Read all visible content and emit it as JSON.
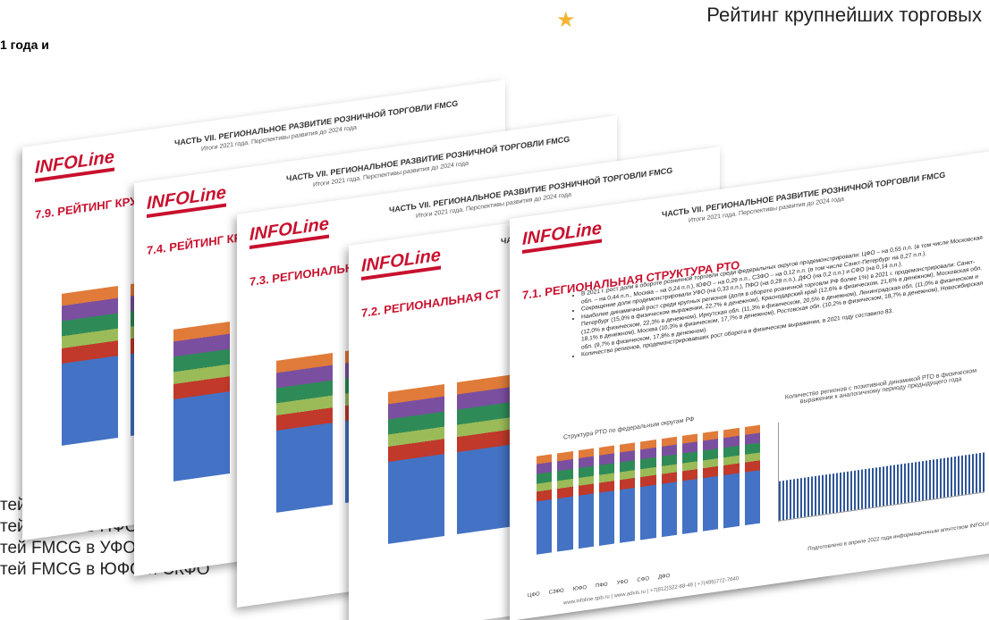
{
  "top_fragment": "1 года и",
  "banner": "Рейтинг крупнейших торговых",
  "side_list": [
    "тей FMCG в СЗФО",
    "тей FMCG в ПФО",
    "тей FMCG в УФО",
    "тей FMCG в ЮФО и СКФО"
  ],
  "slide_header": {
    "logo": "INFOLine",
    "title": "ЧАСТЬ VII. РЕГИОНАЛЬНОЕ РАЗВИТИЕ РОЗНИЧНОЙ ТОРГОВЛИ FMCG",
    "subtitle": "Итоги 2021 года. Перспективы развития до 2024 года"
  },
  "slides": [
    {
      "section": "7.9. РЕЙТИНГ КРУ"
    },
    {
      "section": "7.4. РЕЙТИНГ КРУП"
    },
    {
      "section": "7.3. РЕГИОНАЛЬНА"
    },
    {
      "section": "7.2. РЕГИОНАЛЬНАЯ СТ"
    }
  ],
  "front": {
    "section": "7.1. РЕГИОНАЛЬНАЯ СТРУКТУРА РТО",
    "bullets": [
      "В 2021 г. рост доли в обороте розничной торговли среди федеральных округов продемонстрировали: ЦФО – на 0,55 п.п. (в том числе Московская обл. – на 0,44 п.п., Москва – на 0,24 п.п.), ЮФО – на 0,29 п.п., СЗФО – на 0,12 п.п. (в том числе Санкт-Петербург на 0,27 п.п.).",
      "Сокращение доли продемонстрировали УФО (на 0,33 п.п.), ПФО (на 0,29 п.п.), ДФО (на 0,2 п.п.) и СФО (на 0,14 п.п.).",
      "Наиболее динамичный рост среди крупных регионов (доля в обороте розничной торговли РФ более 1%) в 2021 г. продемонстрировали: Санкт-Петербург (15,0% в физическом выражении, 22,7% в денежном), Краснодарский край (12,6% в физическом, 21,6% в денежном), Московская обл. (12,0% в физическом, 22,3% в денежном), Иркутская обл. (11,3% в физическом, 20,5% в денежном), Ленинградская обл. (11,0% в физическом и 18,1% в денежном), Москва (10,3% в физическом, 17,7% в денежном), Ростовская обл. (10,2% в физическом, 18,7% в денежном), Новосибирская обл. (9,7% в физическом, 17,8% в денежном).",
      "Количество регионов, продемонстрировавших рост оборота в физическом выражении, в 2021 году составило 83."
    ],
    "chart1_title": "Структура РТО по федеральным округам РФ",
    "chart2_title": "Количество регионов с позитивной динамикой РТО в физическом выражении к аналогичному периоду предыдущего года",
    "legend": [
      "ЦФО",
      "СЗФО",
      "ЮФО",
      "ПФО",
      "УФО",
      "СФО",
      "ДФО"
    ],
    "footer": "www.infoline.spb.ru | www.advis.ru | +7(812)322-68-48 | +7(495)772-7640",
    "prepared": "Подготовлено в апреле 2022 года информационным агентством INFOLine"
  }
}
